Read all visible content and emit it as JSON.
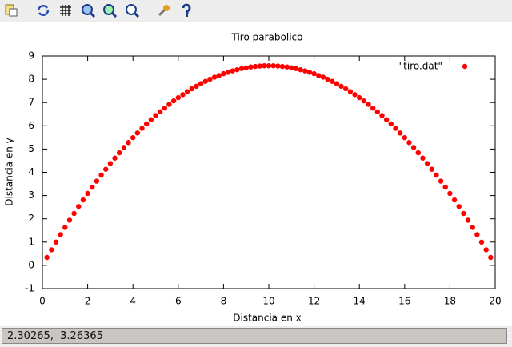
{
  "status_bar": {
    "text": "2.30265,  3.26365"
  },
  "chart_data": {
    "type": "scatter",
    "title": "Tiro parabolico",
    "x_label": "Distancia en x",
    "y_label": "Distancia en y",
    "legend": "top-right",
    "series": [
      {
        "name": "\"tiro.dat\"",
        "color": "#ff0000",
        "x": [
          0.2,
          0.4,
          0.6,
          0.8,
          1,
          1.2,
          1.4,
          1.6,
          1.8,
          2,
          2.2,
          2.4,
          2.6,
          2.8,
          3,
          3.2,
          3.4,
          3.6,
          3.8,
          4,
          4.2,
          4.4,
          4.6,
          4.8,
          5,
          5.2,
          5.4,
          5.6,
          5.8,
          6,
          6.2,
          6.4,
          6.6,
          6.8,
          7,
          7.2,
          7.4,
          7.6,
          7.8,
          8,
          8.2,
          8.4,
          8.6,
          8.8,
          9,
          9.2,
          9.4,
          9.6,
          9.8,
          10,
          10.2,
          10.4,
          10.6,
          10.8,
          11,
          11.2,
          11.4,
          11.6,
          11.8,
          12,
          12.2,
          12.4,
          12.6,
          12.8,
          13,
          13.2,
          13.4,
          13.6,
          13.8,
          14,
          14.2,
          14.4,
          14.6,
          14.8,
          15,
          15.2,
          15.4,
          15.6,
          15.8,
          16,
          16.2,
          16.4,
          16.6,
          16.8,
          17,
          17.2,
          17.4,
          17.6,
          17.8,
          18,
          18.2,
          18.4,
          18.6,
          18.8,
          19,
          19.2,
          19.4,
          19.6,
          19.8
        ],
        "values": [
          0.34,
          0.67,
          1.0,
          1.32,
          1.63,
          1.94,
          2.23,
          2.53,
          2.81,
          3.09,
          3.36,
          3.62,
          3.88,
          4.13,
          4.38,
          4.61,
          4.84,
          5.07,
          5.28,
          5.49,
          5.69,
          5.89,
          6.08,
          6.26,
          6.44,
          6.6,
          6.76,
          6.92,
          7.07,
          7.21,
          7.34,
          7.47,
          7.59,
          7.7,
          7.81,
          7.91,
          8.0,
          8.09,
          8.16,
          8.24,
          8.3,
          8.36,
          8.41,
          8.46,
          8.49,
          8.53,
          8.55,
          8.57,
          8.58,
          8.58,
          8.58,
          8.57,
          8.55,
          8.53,
          8.49,
          8.46,
          8.41,
          8.36,
          8.3,
          8.24,
          8.16,
          8.09,
          8.0,
          7.91,
          7.81,
          7.7,
          7.59,
          7.47,
          7.34,
          7.21,
          7.07,
          6.92,
          6.76,
          6.6,
          6.44,
          6.26,
          6.08,
          5.89,
          5.69,
          5.49,
          5.28,
          5.07,
          4.84,
          4.61,
          4.38,
          4.13,
          3.88,
          3.62,
          3.36,
          3.09,
          2.81,
          2.53,
          2.23,
          1.94,
          1.63,
          1.32,
          1.0,
          0.67,
          0.34
        ]
      }
    ],
    "xlim": [
      0,
      20
    ],
    "ylim": [
      -1,
      9
    ],
    "xticks": [
      0,
      2,
      4,
      6,
      8,
      10,
      12,
      14,
      16,
      18,
      20
    ],
    "yticks": [
      -1,
      0,
      1,
      2,
      3,
      4,
      5,
      6,
      7,
      8,
      9
    ]
  }
}
